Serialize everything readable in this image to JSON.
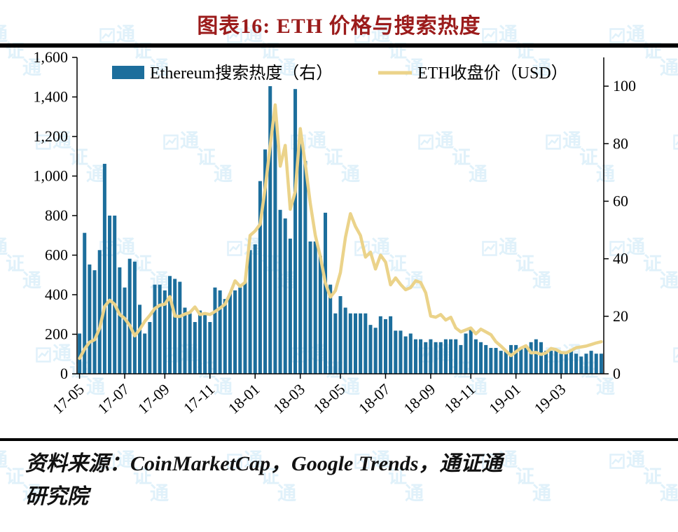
{
  "title": "图表16:  ETH 价格与搜索热度",
  "source": {
    "line1": "资料来源：CoinMarketCap，Google Trends，通证通",
    "line2": "研究院"
  },
  "watermark": "通证通",
  "colors": {
    "title": "#9b1b1b",
    "bar": "#1c6e9c",
    "line": "#ebd38a",
    "rule": "#000000",
    "watermark": "#c7e6f6"
  },
  "chart_data": {
    "type": "bar+line",
    "title": "图表16:  ETH 价格与搜索热度",
    "x_tick_labels": [
      "17-05",
      "17-07",
      "17-09",
      "17-11",
      "18-01",
      "18-03",
      "18-05",
      "18-07",
      "18-09",
      "18-11",
      "19-01",
      "19-03"
    ],
    "x_tick_indices": [
      0,
      9,
      17,
      26,
      35,
      44,
      52,
      61,
      70,
      78,
      87,
      96
    ],
    "x_unit": "week",
    "left_axis": {
      "min": 0,
      "max": 1600,
      "tick_step": 200,
      "tick_labels": [
        "0",
        "200",
        "400",
        "600",
        "800",
        "1,000",
        "1,200",
        "1,400",
        "1,600"
      ]
    },
    "right_axis": {
      "min": 0,
      "max": 110,
      "tick_step": 20,
      "tick_labels": [
        "0",
        "20",
        "40",
        "60",
        "80",
        "100"
      ]
    },
    "legend_position": "top",
    "grid": false,
    "series": [
      {
        "name": "Ethereum搜索热度（右）",
        "type": "bar",
        "axis": "right",
        "color": "#1c6e9c",
        "values": [
          14,
          49,
          38,
          36,
          43,
          73,
          55,
          55,
          37,
          30,
          40,
          39,
          24,
          14,
          18,
          31,
          31,
          29,
          34,
          33,
          32,
          23,
          21,
          18,
          22,
          21,
          18,
          30,
          29,
          26,
          28,
          29,
          30,
          32,
          43,
          45,
          67,
          78,
          100,
          90,
          57,
          54,
          47,
          99,
          80,
          74,
          46,
          46,
          41,
          56,
          31,
          21,
          27,
          23,
          21,
          21,
          21,
          21,
          17,
          16,
          20,
          19,
          20,
          15,
          15,
          13,
          14,
          12,
          12,
          11,
          12,
          11,
          11,
          12,
          12,
          12,
          10,
          14,
          16,
          12,
          11,
          10,
          9,
          9,
          8,
          8,
          10,
          10,
          9,
          9,
          11,
          12,
          11,
          8,
          8,
          8,
          7,
          7,
          8,
          7,
          6,
          7,
          8,
          7,
          7
        ]
      },
      {
        "name": "ETH收盘价（USD）",
        "type": "line",
        "axis": "left",
        "color": "#ebd38a",
        "values": [
          78,
          125,
          160,
          172,
          230,
          340,
          372,
          352,
          300,
          280,
          245,
          192,
          225,
          265,
          295,
          330,
          347,
          352,
          390,
          292,
          290,
          302,
          310,
          338,
          300,
          305,
          300,
          315,
          332,
          352,
          405,
          470,
          442,
          462,
          700,
          722,
          756,
          940,
          1150,
          1360,
          1050,
          1155,
          832,
          920,
          1240,
          1060,
          862,
          700,
          592,
          460,
          388,
          420,
          512,
          690,
          810,
          745,
          700,
          590,
          615,
          530,
          600,
          565,
          450,
          485,
          452,
          425,
          436,
          470,
          462,
          410,
          292,
          286,
          300,
          272,
          286,
          232,
          212,
          222,
          232,
          202,
          226,
          212,
          198,
          162,
          140,
          116,
          92,
          112,
          130,
          142,
          106,
          108,
          98,
          106,
          128,
          122,
          108,
          106,
          118,
          132,
          136,
          140,
          148,
          156,
          162
        ]
      }
    ]
  }
}
